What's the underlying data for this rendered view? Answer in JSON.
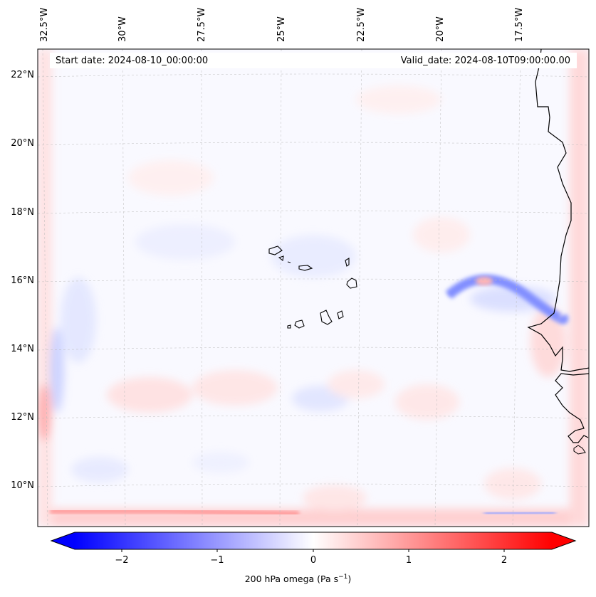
{
  "map": {
    "start_date": "Start date: 2024-08-10_00:00:00",
    "valid_date": "Valid_date: 2024-08-10T09:00:00.00",
    "lon_labels": [
      "32.5°W",
      "30°W",
      "27.5°W",
      "25°W",
      "22.5°W",
      "20°W",
      "17.5°W"
    ],
    "lat_labels": [
      "22°N",
      "20°N",
      "18°N",
      "16°N",
      "14°N",
      "12°N",
      "10°N"
    ]
  },
  "colorbar": {
    "ticks": [
      "−2",
      "−1",
      "0",
      "1",
      "2"
    ],
    "label": "200 hPa omega (Pa s",
    "label_sup": "−1",
    "label_end": ")",
    "min_color": "#0000ff",
    "mid_color": "#ffffff",
    "max_color": "#ff0000"
  }
}
